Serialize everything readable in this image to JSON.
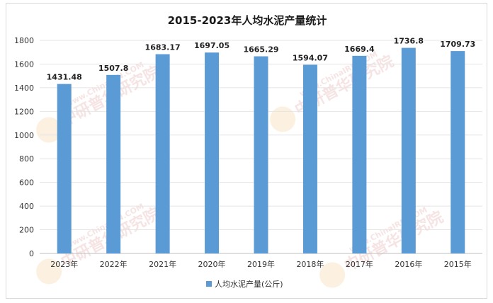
{
  "chart_data": {
    "type": "bar",
    "title": "2015-2023年人均水泥产量统计",
    "categories": [
      "2023年",
      "2022年",
      "2021年",
      "2020年",
      "2019年",
      "2018年",
      "2017年",
      "2016年",
      "2015年"
    ],
    "series": [
      {
        "name": "人均水泥产量(公斤)",
        "values": [
          1431.48,
          1507.8,
          1683.17,
          1697.05,
          1665.29,
          1594.07,
          1669.4,
          1736.8,
          1709.73
        ],
        "labels": [
          "1431.48",
          "1507.8",
          "1683.17",
          "1697.05",
          "1665.29",
          "1594.07",
          "1669.4",
          "1736.8",
          "1709.73"
        ],
        "color": "#5b9bd5"
      }
    ],
    "ylim": [
      0,
      1800
    ],
    "yticks": [
      "0",
      "200",
      "400",
      "600",
      "800",
      "1000",
      "1200",
      "1400",
      "1600",
      "1800"
    ],
    "xlabel": "",
    "ylabel": "",
    "grid": true,
    "legend": "bottom-center"
  },
  "watermark": {
    "text_cn": "中研普华研究院",
    "text_en": "www.ChinaIRN.COM",
    "logo": "CIRN"
  }
}
